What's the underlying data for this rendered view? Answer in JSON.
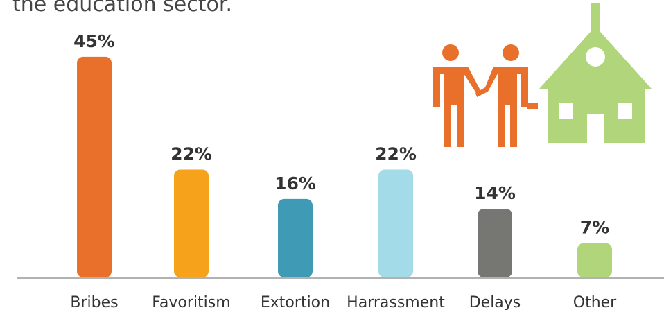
{
  "chart_data": {
    "type": "bar",
    "title": "the education sector.",
    "categories": [
      "Bribes",
      "Favoritism",
      "Extortion",
      "Harrassment",
      "Delays",
      "Other"
    ],
    "values": [
      45,
      22,
      16,
      22,
      14,
      7
    ],
    "value_labels": [
      "45%",
      "22%",
      "16%",
      "22%",
      "14%",
      "7%"
    ],
    "colors": [
      "#e8702a",
      "#f7a21b",
      "#3f9ab5",
      "#a3dbe8",
      "#767672",
      "#b0d57a"
    ]
  }
}
